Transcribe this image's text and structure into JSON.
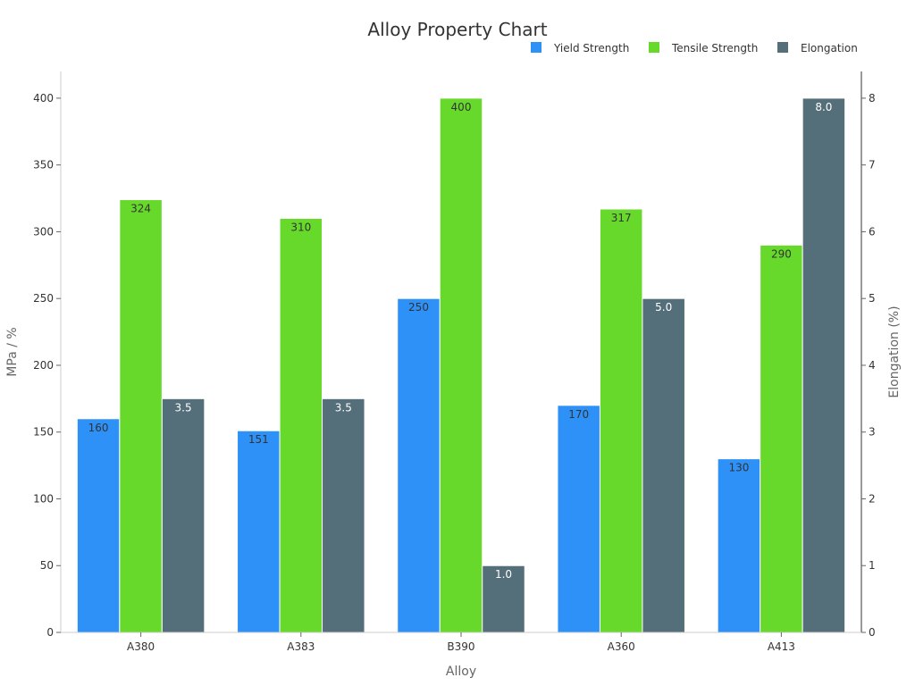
{
  "chart_data": {
    "type": "bar",
    "title": "Alloy Property Chart",
    "xlabel": "Alloy",
    "ylabel": "MPa / %",
    "y2label": "Elongation (%)",
    "categories": [
      "A380",
      "A383",
      "B390",
      "A360",
      "A413"
    ],
    "ylim": [
      0,
      420
    ],
    "y2lim": [
      0,
      8.4
    ],
    "yticks": [
      0,
      50,
      100,
      150,
      200,
      250,
      300,
      350,
      400
    ],
    "y2ticks": [
      0,
      1,
      2,
      3,
      4,
      5,
      6,
      7,
      8
    ],
    "legend_position": "top-right",
    "grid": false,
    "series": [
      {
        "name": "Yield Strength",
        "axis": "left",
        "color": "#2e91f7",
        "label_color": "#333333",
        "values": [
          160,
          151,
          250,
          170,
          130
        ],
        "labels": [
          "160",
          "151",
          "250",
          "170",
          "130"
        ]
      },
      {
        "name": "Tensile Strength",
        "axis": "left",
        "color": "#66d92a",
        "label_color": "#333333",
        "values": [
          324,
          310,
          400,
          317,
          290
        ],
        "labels": [
          "324",
          "310",
          "400",
          "317",
          "290"
        ]
      },
      {
        "name": "Elongation",
        "axis": "right",
        "color": "#546e7a",
        "label_color": "#ffffff",
        "values": [
          3.5,
          3.5,
          1.0,
          5.0,
          8.0
        ],
        "labels": [
          "3.5",
          "3.5",
          "1.0",
          "5.0",
          "8.0"
        ]
      }
    ]
  }
}
